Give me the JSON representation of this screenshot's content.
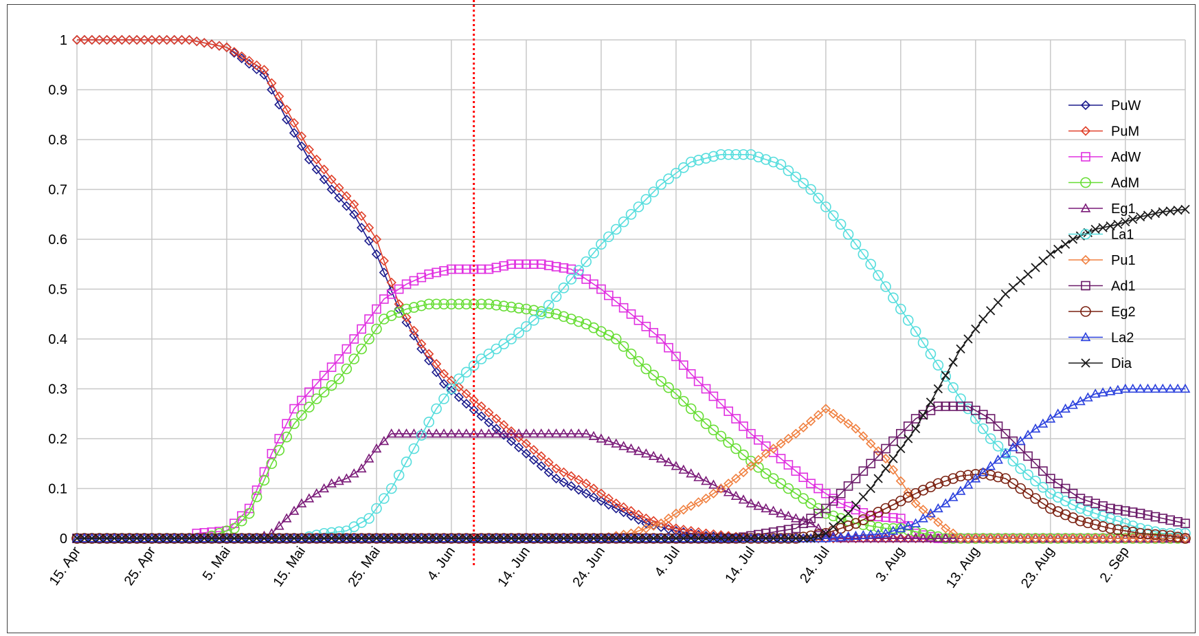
{
  "chart_data": {
    "type": "line",
    "title": "",
    "xlabel": "",
    "ylabel": "",
    "x_unit": "days from 15. Apr",
    "x_range": [
      0,
      148
    ],
    "ylim": [
      0,
      1
    ],
    "y_ticks": [
      "0",
      "0.1",
      "0.2",
      "0.3",
      "0.4",
      "0.5",
      "0.6",
      "0.7",
      "0.8",
      "0.9",
      "1"
    ],
    "x_ticks": [
      {
        "day": 0,
        "label": "15. Apr"
      },
      {
        "day": 10,
        "label": "25. Apr"
      },
      {
        "day": 20,
        "label": "5. Mai"
      },
      {
        "day": 30,
        "label": "15. Mai"
      },
      {
        "day": 40,
        "label": "25. Mai"
      },
      {
        "day": 50,
        "label": "4. Jun"
      },
      {
        "day": 60,
        "label": "14. Jun"
      },
      {
        "day": 70,
        "label": "24. Jun"
      },
      {
        "day": 80,
        "label": "4. Jul"
      },
      {
        "day": 90,
        "label": "14. Jul"
      },
      {
        "day": 100,
        "label": "24. Jul"
      },
      {
        "day": 110,
        "label": "3. Aug"
      },
      {
        "day": 120,
        "label": "13. Aug"
      },
      {
        "day": 130,
        "label": "23. Aug"
      },
      {
        "day": 140,
        "label": "2. Sep"
      }
    ],
    "grid": true,
    "legend_position": "right",
    "reference_line": {
      "day": 53,
      "color": "#ff0000",
      "style": "dotted"
    },
    "series": [
      {
        "name": "PuW",
        "color": "#1a1a8c",
        "marker": "diamond",
        "points": [
          [
            0,
            1
          ],
          [
            15,
            1
          ],
          [
            20,
            0.985
          ],
          [
            25,
            0.93
          ],
          [
            28,
            0.84
          ],
          [
            31,
            0.76
          ],
          [
            34,
            0.7
          ],
          [
            37,
            0.65
          ],
          [
            40,
            0.57
          ],
          [
            43,
            0.46
          ],
          [
            46,
            0.38
          ],
          [
            49,
            0.31
          ],
          [
            52,
            0.27
          ],
          [
            56,
            0.22
          ],
          [
            60,
            0.17
          ],
          [
            64,
            0.12
          ],
          [
            68,
            0.09
          ],
          [
            72,
            0.06
          ],
          [
            76,
            0.03
          ],
          [
            80,
            0.015
          ],
          [
            84,
            0.005
          ],
          [
            90,
            0
          ],
          [
            148,
            0
          ]
        ]
      },
      {
        "name": "PuM",
        "color": "#e0402a",
        "marker": "diamond",
        "points": [
          [
            0,
            1
          ],
          [
            15,
            1
          ],
          [
            20,
            0.985
          ],
          [
            25,
            0.94
          ],
          [
            28,
            0.86
          ],
          [
            31,
            0.78
          ],
          [
            34,
            0.72
          ],
          [
            37,
            0.67
          ],
          [
            40,
            0.6
          ],
          [
            43,
            0.47
          ],
          [
            46,
            0.39
          ],
          [
            49,
            0.33
          ],
          [
            52,
            0.29
          ],
          [
            56,
            0.24
          ],
          [
            60,
            0.19
          ],
          [
            64,
            0.14
          ],
          [
            68,
            0.11
          ],
          [
            72,
            0.07
          ],
          [
            76,
            0.04
          ],
          [
            80,
            0.02
          ],
          [
            84,
            0.01
          ],
          [
            90,
            0
          ],
          [
            148,
            0
          ]
        ]
      },
      {
        "name": "AdW",
        "color": "#e030e0",
        "marker": "square",
        "points": [
          [
            0,
            0
          ],
          [
            15,
            0
          ],
          [
            16,
            0.01
          ],
          [
            20,
            0.015
          ],
          [
            23,
            0.06
          ],
          [
            26,
            0.17
          ],
          [
            29,
            0.26
          ],
          [
            32,
            0.31
          ],
          [
            35,
            0.36
          ],
          [
            38,
            0.42
          ],
          [
            41,
            0.48
          ],
          [
            44,
            0.51
          ],
          [
            47,
            0.53
          ],
          [
            50,
            0.54
          ],
          [
            55,
            0.54
          ],
          [
            58,
            0.55
          ],
          [
            62,
            0.55
          ],
          [
            66,
            0.54
          ],
          [
            70,
            0.5
          ],
          [
            74,
            0.45
          ],
          [
            78,
            0.4
          ],
          [
            82,
            0.33
          ],
          [
            86,
            0.27
          ],
          [
            90,
            0.21
          ],
          [
            94,
            0.16
          ],
          [
            98,
            0.11
          ],
          [
            102,
            0.07
          ],
          [
            106,
            0.045
          ],
          [
            110,
            0.04
          ],
          [
            112,
            0.01
          ],
          [
            115,
            0
          ],
          [
            148,
            0
          ]
        ]
      },
      {
        "name": "AdM",
        "color": "#66dd33",
        "marker": "circle",
        "points": [
          [
            0,
            0
          ],
          [
            17,
            0
          ],
          [
            19,
            0.01
          ],
          [
            21,
            0.02
          ],
          [
            23,
            0.05
          ],
          [
            26,
            0.15
          ],
          [
            29,
            0.23
          ],
          [
            32,
            0.28
          ],
          [
            35,
            0.32
          ],
          [
            38,
            0.38
          ],
          [
            41,
            0.44
          ],
          [
            44,
            0.46
          ],
          [
            47,
            0.47
          ],
          [
            50,
            0.47
          ],
          [
            55,
            0.47
          ],
          [
            60,
            0.46
          ],
          [
            64,
            0.45
          ],
          [
            68,
            0.43
          ],
          [
            72,
            0.4
          ],
          [
            76,
            0.34
          ],
          [
            80,
            0.29
          ],
          [
            84,
            0.23
          ],
          [
            88,
            0.18
          ],
          [
            92,
            0.13
          ],
          [
            96,
            0.09
          ],
          [
            100,
            0.05
          ],
          [
            104,
            0.03
          ],
          [
            108,
            0.02
          ],
          [
            110,
            0.02
          ],
          [
            113,
            0.01
          ],
          [
            116,
            0
          ],
          [
            148,
            0
          ]
        ]
      },
      {
        "name": "Eg1",
        "color": "#7a1a78",
        "marker": "triangle",
        "points": [
          [
            0,
            0
          ],
          [
            24,
            0
          ],
          [
            26,
            0.01
          ],
          [
            28,
            0.04
          ],
          [
            30,
            0.07
          ],
          [
            32,
            0.09
          ],
          [
            34,
            0.11
          ],
          [
            36,
            0.12
          ],
          [
            38,
            0.14
          ],
          [
            40,
            0.18
          ],
          [
            42,
            0.21
          ],
          [
            46,
            0.21
          ],
          [
            55,
            0.21
          ],
          [
            60,
            0.21
          ],
          [
            68,
            0.21
          ],
          [
            70,
            0.2
          ],
          [
            74,
            0.18
          ],
          [
            78,
            0.16
          ],
          [
            82,
            0.13
          ],
          [
            86,
            0.1
          ],
          [
            90,
            0.07
          ],
          [
            94,
            0.05
          ],
          [
            98,
            0.03
          ],
          [
            100,
            0.01
          ],
          [
            102,
            0
          ],
          [
            148,
            0
          ]
        ]
      },
      {
        "name": "La1",
        "color": "#55dddd",
        "marker": "circle",
        "points": [
          [
            0,
            0
          ],
          [
            30,
            0
          ],
          [
            33,
            0.01
          ],
          [
            36,
            0.015
          ],
          [
            39,
            0.04
          ],
          [
            42,
            0.1
          ],
          [
            45,
            0.18
          ],
          [
            48,
            0.26
          ],
          [
            51,
            0.32
          ],
          [
            54,
            0.36
          ],
          [
            58,
            0.4
          ],
          [
            62,
            0.45
          ],
          [
            66,
            0.52
          ],
          [
            70,
            0.59
          ],
          [
            74,
            0.65
          ],
          [
            78,
            0.71
          ],
          [
            82,
            0.755
          ],
          [
            86,
            0.77
          ],
          [
            90,
            0.77
          ],
          [
            94,
            0.75
          ],
          [
            98,
            0.7
          ],
          [
            102,
            0.63
          ],
          [
            106,
            0.55
          ],
          [
            110,
            0.46
          ],
          [
            114,
            0.37
          ],
          [
            118,
            0.28
          ],
          [
            122,
            0.2
          ],
          [
            126,
            0.14
          ],
          [
            130,
            0.09
          ],
          [
            134,
            0.06
          ],
          [
            138,
            0.04
          ],
          [
            142,
            0.02
          ],
          [
            145,
            0.01
          ],
          [
            148,
            0.01
          ]
        ]
      },
      {
        "name": "Pu1",
        "color": "#f08040",
        "marker": "diamond",
        "points": [
          [
            0,
            0
          ],
          [
            70,
            0
          ],
          [
            72,
            0.005
          ],
          [
            74,
            0.01
          ],
          [
            76,
            0.02
          ],
          [
            78,
            0.03
          ],
          [
            80,
            0.05
          ],
          [
            84,
            0.08
          ],
          [
            88,
            0.12
          ],
          [
            92,
            0.17
          ],
          [
            96,
            0.21
          ],
          [
            100,
            0.26
          ],
          [
            104,
            0.22
          ],
          [
            108,
            0.16
          ],
          [
            112,
            0.07
          ],
          [
            116,
            0.02
          ],
          [
            118,
            0
          ],
          [
            148,
            0
          ]
        ]
      },
      {
        "name": "Ad1",
        "color": "#6a1a68",
        "marker": "square",
        "points": [
          [
            0,
            0
          ],
          [
            88,
            0
          ],
          [
            92,
            0.01
          ],
          [
            96,
            0.02
          ],
          [
            100,
            0.06
          ],
          [
            104,
            0.12
          ],
          [
            108,
            0.18
          ],
          [
            112,
            0.24
          ],
          [
            115,
            0.265
          ],
          [
            119,
            0.265
          ],
          [
            122,
            0.24
          ],
          [
            126,
            0.18
          ],
          [
            130,
            0.12
          ],
          [
            134,
            0.08
          ],
          [
            138,
            0.06
          ],
          [
            142,
            0.05
          ],
          [
            145,
            0.04
          ],
          [
            148,
            0.03
          ]
        ]
      },
      {
        "name": "Eg2",
        "color": "#7a2010",
        "marker": "circle",
        "points": [
          [
            0,
            0
          ],
          [
            96,
            0
          ],
          [
            100,
            0.01
          ],
          [
            104,
            0.03
          ],
          [
            108,
            0.06
          ],
          [
            112,
            0.09
          ],
          [
            115,
            0.11
          ],
          [
            118,
            0.125
          ],
          [
            121,
            0.13
          ],
          [
            124,
            0.12
          ],
          [
            127,
            0.09
          ],
          [
            130,
            0.06
          ],
          [
            134,
            0.035
          ],
          [
            138,
            0.02
          ],
          [
            142,
            0.01
          ],
          [
            146,
            0.005
          ],
          [
            148,
            0
          ]
        ]
      },
      {
        "name": "La2",
        "color": "#2a40dd",
        "marker": "triangle",
        "points": [
          [
            0,
            0
          ],
          [
            100,
            0
          ],
          [
            104,
            0.005
          ],
          [
            108,
            0.01
          ],
          [
            112,
            0.03
          ],
          [
            116,
            0.07
          ],
          [
            120,
            0.12
          ],
          [
            124,
            0.17
          ],
          [
            128,
            0.22
          ],
          [
            132,
            0.26
          ],
          [
            136,
            0.29
          ],
          [
            140,
            0.3
          ],
          [
            148,
            0.3
          ]
        ]
      },
      {
        "name": "Dia",
        "color": "#1a1a1a",
        "marker": "x",
        "points": [
          [
            0,
            0
          ],
          [
            98,
            0
          ],
          [
            100,
            0.01
          ],
          [
            103,
            0.05
          ],
          [
            106,
            0.1
          ],
          [
            109,
            0.16
          ],
          [
            112,
            0.22
          ],
          [
            115,
            0.3
          ],
          [
            118,
            0.38
          ],
          [
            121,
            0.44
          ],
          [
            124,
            0.49
          ],
          [
            127,
            0.53
          ],
          [
            130,
            0.57
          ],
          [
            133,
            0.6
          ],
          [
            136,
            0.62
          ],
          [
            139,
            0.63
          ],
          [
            142,
            0.645
          ],
          [
            145,
            0.655
          ],
          [
            148,
            0.66
          ]
        ]
      }
    ]
  }
}
